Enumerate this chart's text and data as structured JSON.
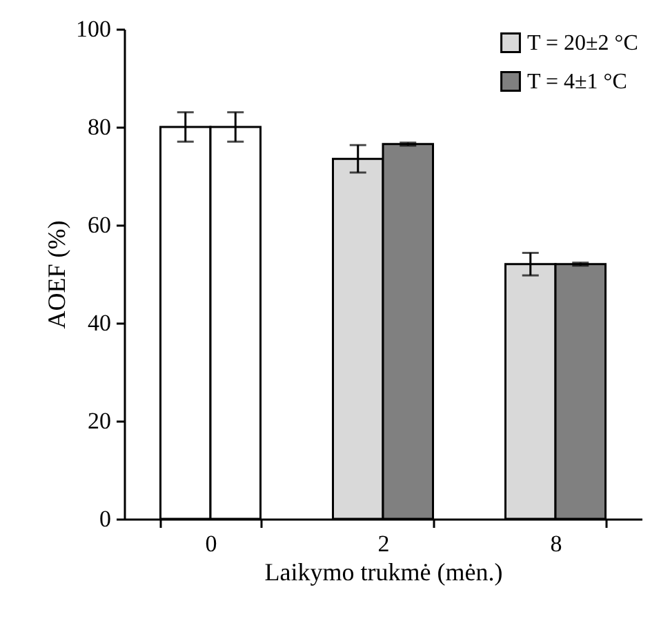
{
  "chart_data": {
    "type": "bar",
    "xlabel": "Laikymo trukmė (mėn.)",
    "ylabel": "AOEF (%)",
    "categories": [
      "0",
      "2",
      "8"
    ],
    "series": [
      {
        "name": "T = 20±2 °C",
        "color": "#d9d9d9",
        "colors": [
          "#ffffff",
          "#d9d9d9",
          "#d9d9d9"
        ],
        "values": [
          80,
          73.5,
          52
        ],
        "errors": [
          3,
          2.8,
          2.3
        ]
      },
      {
        "name": "T = 4±1  °C",
        "color": "#808080",
        "colors": [
          "#ffffff",
          "#808080",
          "#808080"
        ],
        "values": [
          80,
          76.5,
          52
        ],
        "errors": [
          3,
          0.3,
          0.3
        ]
      }
    ],
    "ylim": [
      0,
      100
    ],
    "yticks": [
      0,
      20,
      40,
      60,
      80,
      100
    ],
    "grid": false,
    "legend": "top right"
  }
}
